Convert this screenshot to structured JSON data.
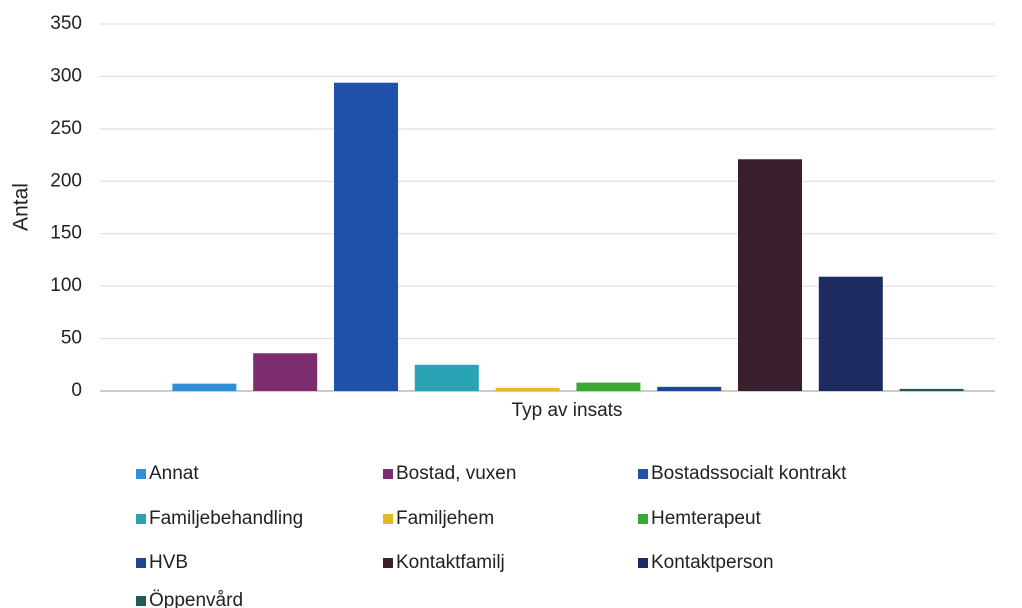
{
  "chart_data": {
    "type": "bar",
    "categories": [
      null
    ],
    "xlabel": "Typ av insats",
    "ylabel": "Antal",
    "series": [
      {
        "name": "Annat",
        "color": "#2f8fd8",
        "values": [
          7
        ]
      },
      {
        "name": "Bostad, vuxen",
        "color": "#7b2d6e",
        "values": [
          36
        ]
      },
      {
        "name": "Bostadssocialt kontrakt",
        "color": "#1f52a8",
        "values": [
          294
        ]
      },
      {
        "name": "Familjebehandling",
        "color": "#2aa3b5",
        "values": [
          25
        ]
      },
      {
        "name": "Familjehem",
        "color": "#e8b820",
        "values": [
          3
        ]
      },
      {
        "name": "Hemterapeut",
        "color": "#3aa832",
        "values": [
          8
        ]
      },
      {
        "name": "HVB",
        "color": "#1f4690",
        "values": [
          4
        ]
      },
      {
        "name": "Kontaktfamilj",
        "color": "#3a1f2e",
        "values": [
          221
        ]
      },
      {
        "name": "Kontaktperson",
        "color": "#1c2b60",
        "values": [
          109
        ]
      },
      {
        "name": "Öppenvård",
        "color": "#1e5a5a",
        "values": [
          2
        ]
      }
    ],
    "ylim": [
      0,
      350
    ],
    "yticks": [
      0,
      50,
      100,
      150,
      200,
      250,
      300,
      350
    ],
    "grid": true,
    "legend": "bottom"
  }
}
